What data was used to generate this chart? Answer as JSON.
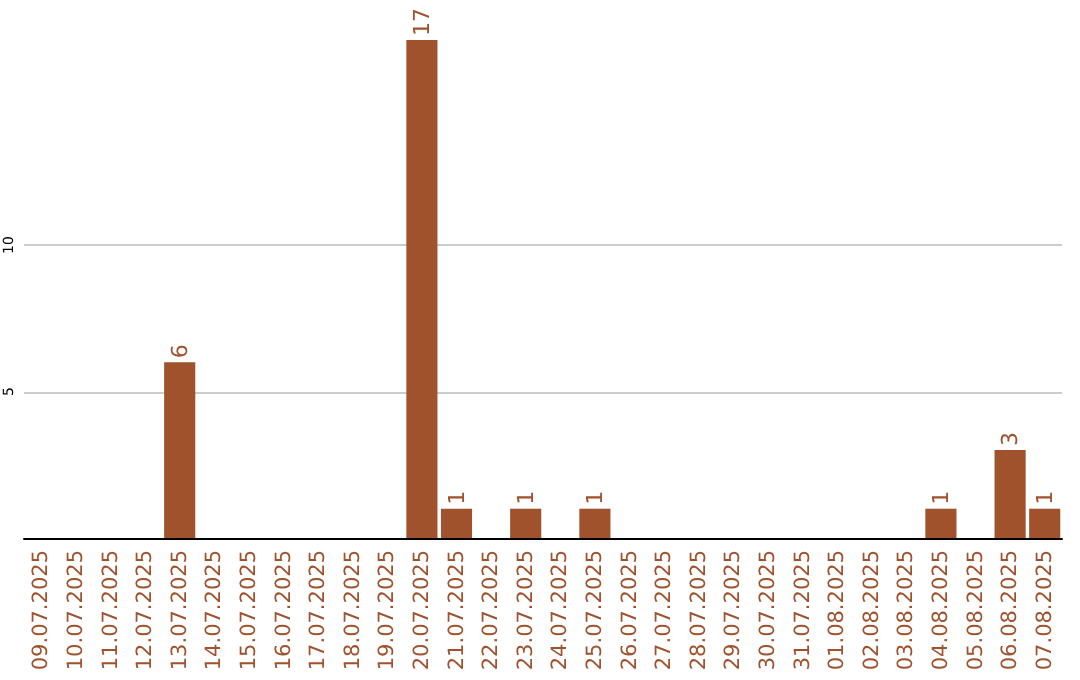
{
  "chart_data": {
    "type": "bar",
    "categories": [
      "09.07.2025",
      "10.07.2025",
      "11.07.2025",
      "12.07.2025",
      "13.07.2025",
      "14.07.2025",
      "15.07.2025",
      "16.07.2025",
      "17.07.2025",
      "18.07.2025",
      "19.07.2025",
      "20.07.2025",
      "21.07.2025",
      "22.07.2025",
      "23.07.2025",
      "24.07.2025",
      "25.07.2025",
      "26.07.2025",
      "27.07.2025",
      "28.07.2025",
      "29.07.2025",
      "30.07.2025",
      "31.07.2025",
      "01.08.2025",
      "02.08.2025",
      "03.08.2025",
      "04.08.2025",
      "05.08.2025",
      "06.08.2025",
      "07.08.2025"
    ],
    "values": [
      0,
      0,
      0,
      0,
      6,
      0,
      0,
      0,
      0,
      0,
      0,
      17,
      1,
      0,
      1,
      0,
      1,
      0,
      0,
      0,
      0,
      0,
      0,
      0,
      0,
      0,
      1,
      0,
      3,
      1
    ],
    "value_labels": [
      null,
      null,
      null,
      null,
      "6",
      null,
      null,
      null,
      null,
      null,
      null,
      "17",
      "1",
      null,
      "1",
      null,
      "1",
      null,
      null,
      null,
      null,
      null,
      null,
      null,
      null,
      null,
      "1",
      null,
      "3",
      "1"
    ],
    "color": "#a0522d",
    "ylim": [
      0,
      17
    ],
    "yticks": [
      5,
      10
    ],
    "grid": "y"
  }
}
